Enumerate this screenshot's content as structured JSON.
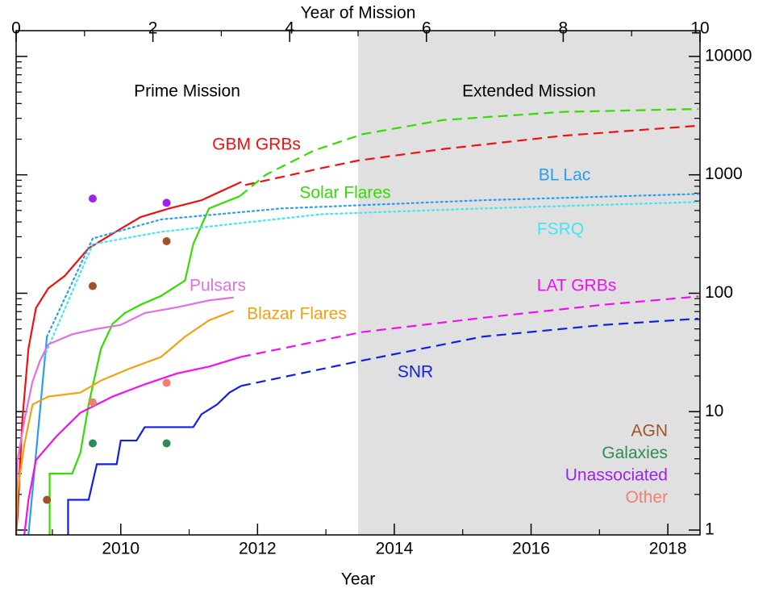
{
  "chart_data": {
    "type": "line",
    "xlabel": "Year",
    "x2label": "Year of Mission",
    "xlim": [
      2008.47,
      2018.47
    ],
    "xticks": [
      2010,
      2012,
      2014,
      2016,
      2018
    ],
    "x2lim": [
      0,
      10
    ],
    "x2ticks": [
      0,
      2,
      4,
      6,
      8,
      10
    ],
    "ylim": [
      0.91,
      16500
    ],
    "yticks": [
      1,
      10,
      100,
      1000,
      10000
    ],
    "log_y": true,
    "minor_ticks": true,
    "regions": [
      {
        "label": "Prime Mission",
        "x": [
          2008.47,
          2013.47
        ]
      },
      {
        "label": "Extended Mission",
        "x": [
          2013.47,
          2018.47
        ],
        "color": "#e0e0e0"
      }
    ],
    "series": [
      {
        "name": "GBM GRBs",
        "color": "#ee1111",
        "segments": [
          {
            "style": "solid",
            "x": [
              2008.47,
              2008.49,
              2008.56,
              2008.65,
              2008.76,
              2008.94,
              2009.18,
              2009.53,
              2010.0,
              2010.29,
              2010.71,
              2011.18,
              2011.76
            ],
            "values": [
              0.91,
              1.3,
              8.4,
              34,
              75,
              110,
              140,
              240,
              350,
              440,
              520,
              610,
              870
            ]
          },
          {
            "style": "dashed",
            "x": [
              2011.82,
              2012.94,
              2013.47,
              2014.71,
              2016.47,
              2018.45
            ],
            "values": [
              820,
              1140,
              1320,
              1650,
              2140,
              2600
            ]
          }
        ]
      },
      {
        "name": "Solar Flares",
        "color": "#33dd00",
        "segments": [
          {
            "style": "solid",
            "x": [
              2008.96,
              2008.96,
              2009.29,
              2009.41,
              2009.53,
              2009.71,
              2009.88,
              2010.06,
              2010.29,
              2010.59,
              2010.94,
              2011.06,
              2011.29,
              2011.74
            ],
            "values": [
              0.91,
              3,
              3,
              4.5,
              11.5,
              34,
              55,
              68,
              80,
              95,
              128,
              260,
              520,
              660
            ]
          },
          {
            "style": "dashed",
            "x": [
              2011.74,
              2012.12,
              2012.82,
              2013.53,
              2014.71,
              2016.47,
              2018.45
            ],
            "values": [
              660,
              1000,
              1600,
              2200,
              2900,
              3400,
              3600
            ]
          }
        ]
      },
      {
        "name": "BL Lac",
        "color": "#2a9df0",
        "segments": [
          {
            "style": "solid",
            "x": [
              2008.65,
              2008.92
            ],
            "values": [
              0.91,
              43
            ]
          },
          {
            "style": "dotted",
            "x": [
              2008.92,
              2009.59,
              2010.59,
              2012.35,
              2015.29,
              2018.45
            ],
            "values": [
              43,
              290,
              420,
              520,
              610,
              690
            ]
          }
        ]
      },
      {
        "name": "FSRQ",
        "color": "#40e6f0",
        "segments": [
          {
            "style": "dotted",
            "x": [
              2008.88,
              2009.59,
              2010.59,
              2012.94,
              2015.29,
              2018.45
            ],
            "values": [
              29,
              260,
              330,
              465,
              520,
              590
            ]
          }
        ]
      },
      {
        "name": "Pulsars",
        "color": "#e070e0",
        "segments": [
          {
            "style": "solid",
            "x": [
              2008.47,
              2008.49,
              2008.59,
              2008.71,
              2008.82,
              2008.94,
              2009.29,
              2009.65,
              2010.0,
              2010.35,
              2010.82,
              2011.29,
              2011.65
            ],
            "values": [
              0.91,
              3.9,
              8.4,
              18,
              27,
              37,
              45,
              50,
              54,
              68,
              76,
              87,
              92
            ]
          }
        ]
      },
      {
        "name": "Blazar Flares",
        "color": "#f5a010",
        "segments": [
          {
            "style": "solid",
            "x": [
              2008.47,
              2008.49,
              2008.59,
              2008.71,
              2008.94,
              2009.41,
              2009.71,
              2010.12,
              2010.59,
              2010.94,
              2011.29,
              2011.65
            ],
            "values": [
              0.91,
              2.1,
              5.3,
              11.5,
              13.4,
              14.5,
              18.3,
              23,
              29,
              43,
              59,
              71
            ]
          }
        ]
      },
      {
        "name": "LAT GRBs",
        "color": "#f010f0",
        "segments": [
          {
            "style": "solid",
            "x": [
              2008.59,
              2008.65,
              2008.76,
              2009.06,
              2009.41,
              2009.88,
              2010.35,
              2010.82,
              2011.29,
              2011.76
            ],
            "values": [
              0.91,
              1.8,
              3.9,
              6.2,
              9.8,
              13.4,
              17,
              21,
              24,
              29
            ]
          },
          {
            "style": "dashed",
            "x": [
              2011.76,
              2013.53,
              2015.29,
              2017.06,
              2018.45
            ],
            "values": [
              29,
              47,
              62,
              80,
              94
            ]
          }
        ]
      },
      {
        "name": "SNR",
        "color": "#1020e0",
        "segments": [
          {
            "style": "solid",
            "x": [
              2009.23,
              2009.23,
              2009.53,
              2009.65,
              2009.94,
              2010.0,
              2010.23,
              2010.35,
              2011.06,
              2011.18,
              2011.41,
              2011.59,
              2011.76
            ],
            "values": [
              0.91,
              1.8,
              1.8,
              3.6,
              3.6,
              5.7,
              5.7,
              7.4,
              7.4,
              9.5,
              11.5,
              14.5,
              16.5
            ]
          },
          {
            "style": "dashed",
            "x": [
              2011.76,
              2013.53,
              2015.29,
              2017.06,
              2018.45
            ],
            "values": [
              16.5,
              27,
              43,
              54,
              61
            ]
          }
        ]
      }
    ],
    "points": [
      {
        "name": "AGN",
        "color": "#a0522d",
        "x": [
          2008.92,
          2009.59,
          2010.67
        ],
        "values": [
          1.8,
          115,
          275
        ]
      },
      {
        "name": "Galaxies",
        "color": "#2e8b57",
        "x": [
          2009.59,
          2010.67
        ],
        "values": [
          5.4,
          5.4
        ]
      },
      {
        "name": "Unassociated",
        "color": "#a020f0",
        "x": [
          2009.59,
          2010.67
        ],
        "values": [
          630,
          580
        ]
      },
      {
        "name": "Other",
        "color": "#f08070",
        "x": [
          2009.59,
          2010.67
        ],
        "values": [
          12,
          17.5
        ]
      }
    ]
  }
}
